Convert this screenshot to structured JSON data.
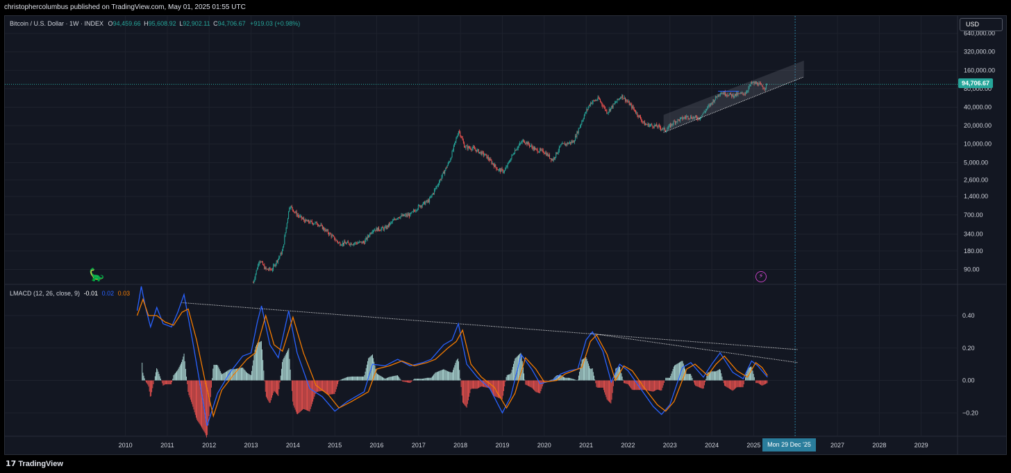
{
  "header": {
    "publisher_line": "christophercolumbus published on TradingView.com, May 01, 2025 01:55 UTC"
  },
  "footer": {
    "brand": "TradingView",
    "brand_icon": "tradingview-logo-icon"
  },
  "main_chart": {
    "symbol": "Bitcoin / U.S. Dollar · 1W · INDEX",
    "ohlc": {
      "o_label": "O",
      "o": "94,459.66",
      "h_label": "H",
      "h": "95,608.92",
      "l_label": "L",
      "l": "92,902.11",
      "c_label": "C",
      "c": "94,706.67",
      "change": "+919.03 (+0.98%)"
    },
    "currency": "USD",
    "last_price_label": "94,706.67"
  },
  "macd_legend": {
    "name": "LMACD (12, 26, close, 9)",
    "hist": "-0.01",
    "macd": "0.02",
    "signal": "0.03"
  },
  "crosshair_date": "Mon 29 Dec '25",
  "colors": {
    "up": "#26a69a",
    "down": "#ef5350",
    "macd": "#2962ff",
    "signal": "#f57c00",
    "grid": "#1e222d",
    "bg": "#131722",
    "text": "#d1d4dc"
  },
  "chart_data": [
    {
      "type": "candlestick",
      "title": "Bitcoin / U.S. Dollar · 1W · INDEX (log scale)",
      "x_axis": {
        "range": [
          2010,
          2029.9
        ],
        "tick_values": [
          2010,
          2011,
          2012,
          2013,
          2014,
          2015,
          2016,
          2017,
          2018,
          2019,
          2020,
          2021,
          2022,
          2023,
          2024,
          2025,
          2027,
          2028,
          2029
        ],
        "tick_labels": [
          "2010",
          "2011",
          "2012",
          "2013",
          "2014",
          "2015",
          "2016",
          "2017",
          "2018",
          "2019",
          "2020",
          "2021",
          "2022",
          "2023",
          "2024",
          "2025",
          "2027",
          "2028",
          "2029"
        ]
      },
      "y_axis": {
        "scale": "log",
        "tick_values": [
          90,
          180,
          340,
          700,
          1400,
          2600,
          5000,
          10000,
          20000,
          40000,
          80000,
          160000,
          320000,
          640000
        ],
        "tick_labels": [
          "90.00",
          "180.00",
          "340.00",
          "700.00",
          "1,400.00",
          "2,600.00",
          "5,000.00",
          "10,000.00",
          "20,000.00",
          "40,000.00",
          "80,000.00",
          "160,000.00",
          "320,000.00",
          "640,000.00"
        ]
      },
      "close_path": [
        [
          2013.05,
          55
        ],
        [
          2013.2,
          130
        ],
        [
          2013.35,
          90
        ],
        [
          2013.5,
          90
        ],
        [
          2013.75,
          180
        ],
        [
          2013.92,
          1000
        ],
        [
          2014.1,
          700
        ],
        [
          2014.3,
          550
        ],
        [
          2014.6,
          500
        ],
        [
          2014.9,
          330
        ],
        [
          2015.1,
          240
        ],
        [
          2015.4,
          240
        ],
        [
          2015.7,
          250
        ],
        [
          2015.9,
          400
        ],
        [
          2016.2,
          420
        ],
        [
          2016.5,
          650
        ],
        [
          2016.8,
          700
        ],
        [
          2017.0,
          960
        ],
        [
          2017.25,
          1200
        ],
        [
          2017.5,
          2500
        ],
        [
          2017.75,
          5500
        ],
        [
          2017.96,
          17000
        ],
        [
          2018.1,
          9000
        ],
        [
          2018.3,
          8500
        ],
        [
          2018.6,
          6500
        ],
        [
          2018.9,
          3800
        ],
        [
          2019.05,
          3600
        ],
        [
          2019.3,
          8000
        ],
        [
          2019.5,
          11500
        ],
        [
          2019.8,
          8000
        ],
        [
          2020.0,
          7500
        ],
        [
          2020.2,
          5500
        ],
        [
          2020.4,
          9500
        ],
        [
          2020.7,
          11000
        ],
        [
          2020.95,
          29000
        ],
        [
          2021.1,
          47000
        ],
        [
          2021.3,
          55000
        ],
        [
          2021.5,
          33000
        ],
        [
          2021.85,
          62000
        ],
        [
          2022.1,
          40000
        ],
        [
          2022.4,
          21000
        ],
        [
          2022.7,
          19500
        ],
        [
          2022.9,
          16800
        ],
        [
          2023.1,
          23000
        ],
        [
          2023.4,
          28000
        ],
        [
          2023.7,
          26500
        ],
        [
          2023.95,
          43000
        ],
        [
          2024.2,
          70000
        ],
        [
          2024.5,
          62000
        ],
        [
          2024.8,
          68000
        ],
        [
          2024.95,
          99000
        ],
        [
          2025.1,
          97000
        ],
        [
          2025.25,
          82000
        ],
        [
          2025.33,
          94706.67
        ]
      ],
      "ranges_note": "data ranges approximated from chart",
      "annotations": [
        {
          "type": "horizontal_line",
          "value": 94706.67,
          "style": "dotted"
        },
        {
          "type": "trendline",
          "from": [
            2022.85,
            15500
          ],
          "to": [
            2026.2,
            125000
          ]
        },
        {
          "type": "channel",
          "upper_from": [
            2022.85,
            30000
          ],
          "upper_to": [
            2026.2,
            230000
          ],
          "lower_from": [
            2022.85,
            15500
          ],
          "lower_to": [
            2026.2,
            125000
          ]
        }
      ]
    },
    {
      "type": "line",
      "title": "LMACD (12, 26, close, 9)",
      "y_axis": {
        "range": [
          -0.34,
          0.58
        ],
        "tick_values": [
          0.4,
          0.2,
          0.0,
          -0.2
        ],
        "tick_labels": [
          "0.40",
          "0.20",
          "0.00",
          "−0.20"
        ]
      },
      "series": [
        {
          "name": "MACD",
          "color": "#2962ff",
          "points": [
            [
              2010.28,
              0.43
            ],
            [
              2010.38,
              0.58
            ],
            [
              2010.48,
              0.45
            ],
            [
              2010.6,
              0.33
            ],
            [
              2010.75,
              0.45
            ],
            [
              2010.9,
              0.35
            ],
            [
              2011.1,
              0.33
            ],
            [
              2011.25,
              0.42
            ],
            [
              2011.4,
              0.53
            ],
            [
              2011.6,
              0.25
            ],
            [
              2011.8,
              -0.05
            ],
            [
              2011.95,
              -0.28
            ],
            [
              2012.2,
              -0.08
            ],
            [
              2012.5,
              0.05
            ],
            [
              2012.8,
              0.15
            ],
            [
              2013.0,
              0.17
            ],
            [
              2013.15,
              0.36
            ],
            [
              2013.25,
              0.46
            ],
            [
              2013.45,
              0.22
            ],
            [
              2013.65,
              0.14
            ],
            [
              2013.9,
              0.43
            ],
            [
              2014.1,
              0.17
            ],
            [
              2014.4,
              -0.05
            ],
            [
              2014.7,
              -0.1
            ],
            [
              2015.0,
              -0.19
            ],
            [
              2015.3,
              -0.13
            ],
            [
              2015.7,
              -0.07
            ],
            [
              2015.9,
              0.1
            ],
            [
              2016.2,
              0.09
            ],
            [
              2016.5,
              0.13
            ],
            [
              2016.8,
              0.09
            ],
            [
              2017.1,
              0.11
            ],
            [
              2017.3,
              0.13
            ],
            [
              2017.6,
              0.22
            ],
            [
              2017.8,
              0.25
            ],
            [
              2017.95,
              0.35
            ],
            [
              2018.15,
              0.1
            ],
            [
              2018.4,
              0.02
            ],
            [
              2018.7,
              -0.05
            ],
            [
              2019.0,
              -0.2
            ],
            [
              2019.2,
              -0.1
            ],
            [
              2019.45,
              0.16
            ],
            [
              2019.7,
              0.07
            ],
            [
              2019.9,
              -0.02
            ],
            [
              2020.2,
              0.0
            ],
            [
              2020.4,
              0.04
            ],
            [
              2020.6,
              0.06
            ],
            [
              2020.8,
              0.07
            ],
            [
              2021.0,
              0.25
            ],
            [
              2021.15,
              0.3
            ],
            [
              2021.4,
              0.18
            ],
            [
              2021.6,
              -0.01
            ],
            [
              2021.8,
              0.1
            ],
            [
              2022.0,
              0.06
            ],
            [
              2022.3,
              -0.05
            ],
            [
              2022.6,
              -0.16
            ],
            [
              2022.8,
              -0.21
            ],
            [
              2023.0,
              -0.15
            ],
            [
              2023.3,
              0.08
            ],
            [
              2023.5,
              0.11
            ],
            [
              2023.8,
              0.02
            ],
            [
              2024.0,
              0.1
            ],
            [
              2024.2,
              0.17
            ],
            [
              2024.5,
              0.05
            ],
            [
              2024.75,
              0.01
            ],
            [
              2024.95,
              0.12
            ],
            [
              2025.1,
              0.09
            ],
            [
              2025.33,
              0.02
            ]
          ]
        },
        {
          "name": "Signal",
          "color": "#f57c00",
          "points": [
            [
              2010.28,
              0.4
            ],
            [
              2010.42,
              0.5
            ],
            [
              2010.55,
              0.4
            ],
            [
              2010.75,
              0.4
            ],
            [
              2010.95,
              0.36
            ],
            [
              2011.15,
              0.34
            ],
            [
              2011.35,
              0.42
            ],
            [
              2011.5,
              0.44
            ],
            [
              2011.7,
              0.25
            ],
            [
              2011.9,
              0.0
            ],
            [
              2012.1,
              -0.22
            ],
            [
              2012.3,
              -0.06
            ],
            [
              2012.6,
              0.04
            ],
            [
              2012.9,
              0.13
            ],
            [
              2013.1,
              0.17
            ],
            [
              2013.35,
              0.4
            ],
            [
              2013.55,
              0.22
            ],
            [
              2013.75,
              0.18
            ],
            [
              2014.0,
              0.39
            ],
            [
              2014.25,
              0.17
            ],
            [
              2014.55,
              -0.03
            ],
            [
              2014.85,
              -0.09
            ],
            [
              2015.1,
              -0.17
            ],
            [
              2015.4,
              -0.13
            ],
            [
              2015.8,
              -0.07
            ],
            [
              2016.0,
              0.07
            ],
            [
              2016.3,
              0.09
            ],
            [
              2016.6,
              0.12
            ],
            [
              2016.9,
              0.09
            ],
            [
              2017.2,
              0.11
            ],
            [
              2017.4,
              0.13
            ],
            [
              2017.7,
              0.2
            ],
            [
              2017.9,
              0.24
            ],
            [
              2018.05,
              0.31
            ],
            [
              2018.25,
              0.1
            ],
            [
              2018.5,
              0.02
            ],
            [
              2018.8,
              -0.04
            ],
            [
              2019.1,
              -0.17
            ],
            [
              2019.3,
              -0.08
            ],
            [
              2019.55,
              0.14
            ],
            [
              2019.8,
              0.07
            ],
            [
              2020.0,
              -0.01
            ],
            [
              2020.3,
              0.0
            ],
            [
              2020.5,
              0.04
            ],
            [
              2020.7,
              0.06
            ],
            [
              2020.9,
              0.08
            ],
            [
              2021.1,
              0.24
            ],
            [
              2021.25,
              0.28
            ],
            [
              2021.5,
              0.16
            ],
            [
              2021.7,
              0.0
            ],
            [
              2021.9,
              0.09
            ],
            [
              2022.1,
              0.06
            ],
            [
              2022.4,
              -0.05
            ],
            [
              2022.7,
              -0.15
            ],
            [
              2022.9,
              -0.19
            ],
            [
              2023.1,
              -0.13
            ],
            [
              2023.4,
              0.07
            ],
            [
              2023.6,
              0.1
            ],
            [
              2023.9,
              0.03
            ],
            [
              2024.1,
              0.1
            ],
            [
              2024.3,
              0.15
            ],
            [
              2024.6,
              0.06
            ],
            [
              2024.85,
              0.02
            ],
            [
              2025.05,
              0.11
            ],
            [
              2025.2,
              0.08
            ],
            [
              2025.33,
              0.03
            ]
          ]
        }
      ],
      "histogram": {
        "name": "Histogram",
        "last_value": -0.01
      },
      "annotations": [
        {
          "type": "trendline",
          "from": [
            2011.33,
            0.48
          ],
          "to": [
            2026.05,
            0.19
          ],
          "style": "dotted"
        },
        {
          "type": "trendline",
          "from": [
            2021.1,
            0.29
          ],
          "to": [
            2026.05,
            0.11
          ],
          "style": "dotted"
        }
      ]
    }
  ]
}
